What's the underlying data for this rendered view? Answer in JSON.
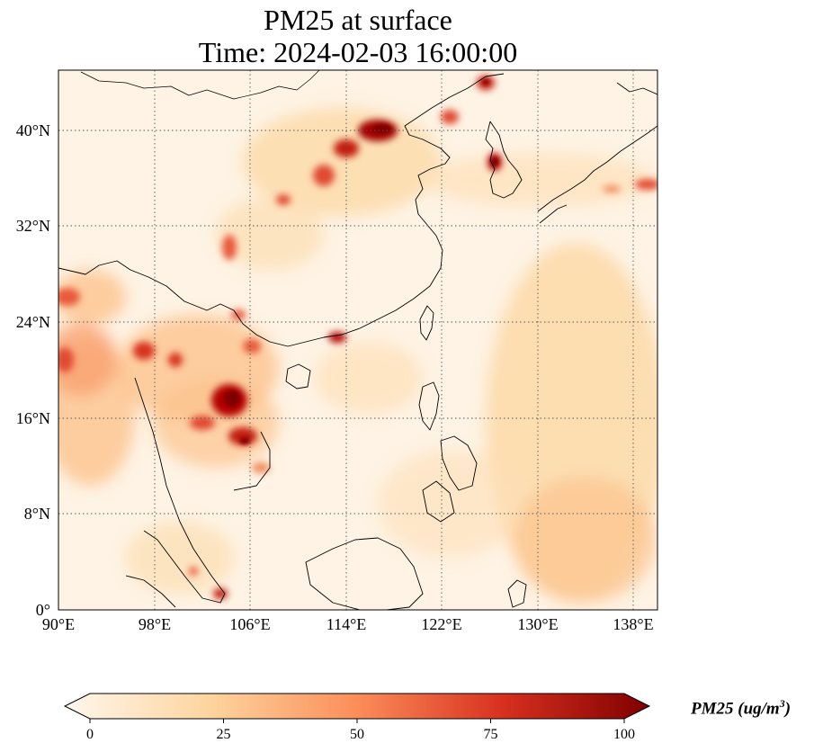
{
  "title": {
    "line1": "PM25 at surface",
    "line2": "Time: 2024-02-03 16:00:00"
  },
  "axes": {
    "x_ticks": [
      "90°E",
      "98°E",
      "106°E",
      "114°E",
      "122°E",
      "130°E",
      "138°E"
    ],
    "y_ticks": [
      "0°",
      "8°N",
      "16°N",
      "24°N",
      "32°N",
      "40°N"
    ],
    "lon_range": [
      90,
      140
    ],
    "lat_range": [
      0,
      45
    ]
  },
  "colorbar": {
    "label": "PM25 (ug/m",
    "label_sup": "3",
    "label_close": ")",
    "ticks": [
      "0",
      "25",
      "50",
      "75",
      "100"
    ],
    "range": [
      0,
      100
    ],
    "colormap": "OrRd",
    "colors": [
      "#fff7ec",
      "#fdd49e",
      "#fc8d59",
      "#d7301f",
      "#7f0000"
    ]
  },
  "map": {
    "background": "#fef3e4",
    "gridlines": "dotted",
    "coastlines": true
  }
}
